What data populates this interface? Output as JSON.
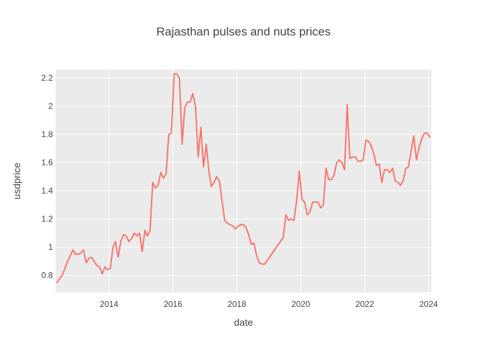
{
  "chart_data": {
    "type": "line",
    "title": "Rajasthan pulses and nuts prices",
    "xlabel": "date",
    "ylabel": "usdprice",
    "xlim": [
      "2012-05-01",
      "2024-02-01"
    ],
    "ylim": [
      0.68,
      2.26
    ],
    "x_ticks": [
      "2014",
      "2016",
      "2018",
      "2020",
      "2022",
      "2024"
    ],
    "y_ticks": [
      "0.8",
      "1",
      "1.2",
      "1.4",
      "1.6",
      "1.8",
      "2",
      "2.2"
    ],
    "grid": true,
    "legend": false,
    "colors": {
      "line": "#F8766D",
      "plot_bg": "#EBEBEB",
      "grid": "#FFFFFF"
    },
    "series": [
      {
        "x": [
          "2012-05-15",
          "2012-07-15",
          "2012-09-15",
          "2012-10-15",
          "2012-11-15",
          "2012-12-15",
          "2013-01-15",
          "2013-02-15",
          "2013-03-15",
          "2013-04-15",
          "2013-05-15",
          "2013-06-15",
          "2013-07-15",
          "2013-08-15",
          "2013-09-15",
          "2013-10-15",
          "2013-11-15",
          "2013-12-15",
          "2014-01-15",
          "2014-02-15",
          "2014-03-15",
          "2014-04-15",
          "2014-05-15",
          "2014-06-15",
          "2014-07-15",
          "2014-08-15",
          "2014-09-15",
          "2014-10-15",
          "2014-11-15",
          "2014-12-15",
          "2015-01-15",
          "2015-02-15",
          "2015-03-15",
          "2015-04-15",
          "2015-05-15",
          "2015-06-15",
          "2015-07-15",
          "2015-08-15",
          "2015-09-15",
          "2015-10-15",
          "2015-11-15",
          "2015-12-15",
          "2016-01-15",
          "2016-02-15",
          "2016-03-15",
          "2016-04-15",
          "2016-05-15",
          "2016-06-15",
          "2016-07-15",
          "2016-08-15",
          "2016-09-15",
          "2016-10-15",
          "2016-11-15",
          "2016-12-15",
          "2017-01-15",
          "2017-02-15",
          "2017-03-15",
          "2017-04-15",
          "2017-05-15",
          "2017-06-15",
          "2017-07-15",
          "2017-08-15",
          "2017-09-15",
          "2017-10-15",
          "2017-11-15",
          "2017-12-15",
          "2018-01-15",
          "2018-02-15",
          "2018-03-15",
          "2018-04-15",
          "2018-05-15",
          "2018-06-15",
          "2018-07-15",
          "2018-08-15",
          "2018-09-15",
          "2018-10-15",
          "2018-11-15",
          "2019-06-15",
          "2019-07-15",
          "2019-08-15",
          "2019-09-15",
          "2019-10-15",
          "2019-11-15",
          "2019-12-15",
          "2020-01-15",
          "2020-02-15",
          "2020-03-15",
          "2020-04-15",
          "2020-05-15",
          "2020-06-15",
          "2020-07-15",
          "2020-08-15",
          "2020-09-15",
          "2020-10-15",
          "2020-11-15",
          "2020-12-15",
          "2021-01-15",
          "2021-02-15",
          "2021-03-15",
          "2021-04-15",
          "2021-05-15",
          "2021-06-15",
          "2021-07-15",
          "2021-08-15",
          "2021-09-15",
          "2021-10-15",
          "2021-11-15",
          "2021-12-15",
          "2022-01-15",
          "2022-02-15",
          "2022-03-15",
          "2022-04-15",
          "2022-05-15",
          "2022-06-15",
          "2022-07-15",
          "2022-08-15",
          "2022-09-15",
          "2022-10-15",
          "2022-11-15",
          "2022-12-15",
          "2023-01-15",
          "2023-02-15",
          "2023-03-15",
          "2023-04-15",
          "2023-05-15",
          "2023-06-15",
          "2023-07-15",
          "2023-08-15",
          "2023-09-15",
          "2023-10-15",
          "2023-11-15",
          "2023-12-15",
          "2024-01-15"
        ],
        "y": [
          0.75,
          0.8,
          0.9,
          0.94,
          0.98,
          0.95,
          0.95,
          0.96,
          0.98,
          0.89,
          0.92,
          0.93,
          0.9,
          0.87,
          0.86,
          0.81,
          0.86,
          0.84,
          0.85,
          1.0,
          1.04,
          0.93,
          1.04,
          1.09,
          1.08,
          1.04,
          1.06,
          1.1,
          1.08,
          1.1,
          0.97,
          1.12,
          1.08,
          1.12,
          1.46,
          1.42,
          1.44,
          1.53,
          1.49,
          1.52,
          1.8,
          1.81,
          2.23,
          2.23,
          2.2,
          1.73,
          1.99,
          2.03,
          2.03,
          2.09,
          2.0,
          1.64,
          1.85,
          1.57,
          1.73,
          1.54,
          1.43,
          1.46,
          1.5,
          1.47,
          1.33,
          1.19,
          1.17,
          1.16,
          1.15,
          1.13,
          1.15,
          1.16,
          1.16,
          1.14,
          1.09,
          1.02,
          1.03,
          0.94,
          0.89,
          0.88,
          0.88,
          1.07,
          1.23,
          1.19,
          1.2,
          1.19,
          1.33,
          1.54,
          1.34,
          1.32,
          1.23,
          1.25,
          1.32,
          1.32,
          1.32,
          1.28,
          1.3,
          1.56,
          1.48,
          1.48,
          1.51,
          1.6,
          1.62,
          1.6,
          1.55,
          2.01,
          1.63,
          1.64,
          1.64,
          1.61,
          1.61,
          1.62,
          1.76,
          1.75,
          1.72,
          1.66,
          1.58,
          1.59,
          1.46,
          1.55,
          1.55,
          1.53,
          1.56,
          1.47,
          1.46,
          1.44,
          1.47,
          1.56,
          1.57,
          1.68,
          1.79,
          1.62,
          1.71,
          1.77,
          1.81,
          1.81,
          1.78
        ]
      }
    ]
  }
}
